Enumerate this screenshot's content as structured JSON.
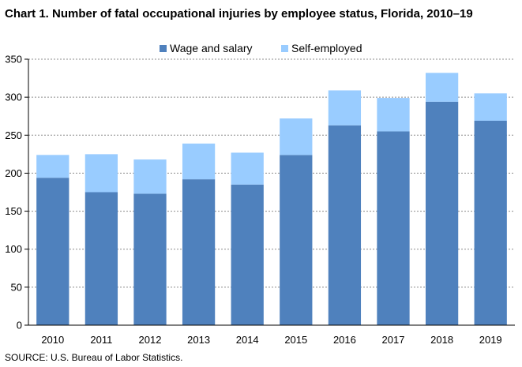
{
  "title": "Chart 1. Number of fatal occupational injuries by employee status, Florida, 2010–19",
  "source": "SOURCE: U.S. Bureau of Labor Statistics.",
  "chart_data": {
    "type": "bar",
    "stacked": true,
    "title": "Chart 1. Number of fatal occupational injuries by employee status, Florida, 2010–19",
    "categories": [
      "2010",
      "2011",
      "2012",
      "2013",
      "2014",
      "2015",
      "2016",
      "2017",
      "2018",
      "2019"
    ],
    "series": [
      {
        "name": "Wage and salary",
        "color": "#4f81bd",
        "values": [
          194,
          175,
          173,
          192,
          185,
          224,
          263,
          255,
          294,
          269
        ]
      },
      {
        "name": "Self-employed",
        "color": "#99ccff",
        "values": [
          30,
          50,
          45,
          47,
          42,
          48,
          46,
          44,
          38,
          36
        ]
      }
    ],
    "ylim": [
      0,
      350
    ],
    "yticks": [
      0,
      50,
      100,
      150,
      200,
      250,
      300,
      350
    ],
    "grid": true,
    "legend": "top-center"
  }
}
